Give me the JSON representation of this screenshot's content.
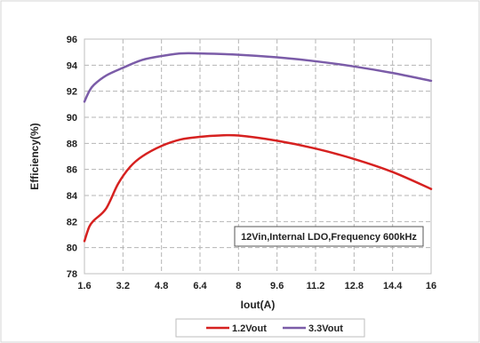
{
  "chart_data": {
    "type": "line",
    "title": "",
    "xlabel": "Iout(A)",
    "ylabel": "Efficiency(%)",
    "xlim": [
      1.6,
      16
    ],
    "ylim": [
      78,
      96
    ],
    "x_ticks": [
      "1.6",
      "3.2",
      "4.8",
      "6.4",
      "8",
      "9.6",
      "11.2",
      "12.8",
      "14.4",
      "16"
    ],
    "y_ticks": [
      "78",
      "80",
      "82",
      "84",
      "86",
      "88",
      "90",
      "92",
      "94",
      "96"
    ],
    "grid": true,
    "annotation": "12Vin,Internal LDO,Frequency 600kHz",
    "legend_position": "bottom",
    "series": [
      {
        "name": "1.2Vout",
        "color": "#d62120",
        "x": [
          1.6,
          1.8,
          2.0,
          2.5,
          3.0,
          3.5,
          4.0,
          4.8,
          5.6,
          6.4,
          7.2,
          8.0,
          9.6,
          11.2,
          12.8,
          14.4,
          16.0
        ],
        "y": [
          80.5,
          81.6,
          82.1,
          83.0,
          84.9,
          86.2,
          87.0,
          87.8,
          88.3,
          88.5,
          88.6,
          88.6,
          88.2,
          87.6,
          86.8,
          85.8,
          84.5
        ]
      },
      {
        "name": "3.3Vout",
        "color": "#7b5ca8",
        "x": [
          1.6,
          1.8,
          2.0,
          2.5,
          3.2,
          4.0,
          4.8,
          5.6,
          6.4,
          8.0,
          9.6,
          11.2,
          12.8,
          14.4,
          16.0
        ],
        "y": [
          91.2,
          92.0,
          92.5,
          93.2,
          93.8,
          94.4,
          94.7,
          94.9,
          94.9,
          94.8,
          94.6,
          94.3,
          93.9,
          93.4,
          92.8
        ]
      }
    ]
  }
}
